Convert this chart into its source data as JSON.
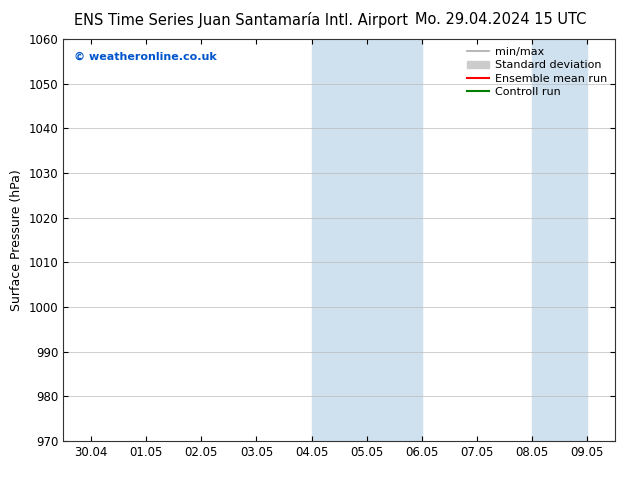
{
  "title_left": "ENS Time Series Juan Santamaría Intl. Airport",
  "title_right": "Mo. 29.04.2024 15 UTC",
  "ylabel": "Surface Pressure (hPa)",
  "ylim": [
    970,
    1060
  ],
  "yticks": [
    970,
    980,
    990,
    1000,
    1010,
    1020,
    1030,
    1040,
    1050,
    1060
  ],
  "xtick_labels": [
    "30.04",
    "01.05",
    "02.05",
    "03.05",
    "04.05",
    "05.05",
    "06.05",
    "07.05",
    "08.05",
    "09.05"
  ],
  "shaded_regions": [
    {
      "xstart": 4,
      "xend": 6,
      "color": "#cfe0ee"
    },
    {
      "xstart": 8,
      "xend": 9,
      "color": "#cfe0ee"
    }
  ],
  "watermark": "© weatheronline.co.uk",
  "watermark_color": "#0055cc",
  "legend_entries": [
    {
      "label": "min/max",
      "color": "#aaaaaa",
      "lw": 1.2
    },
    {
      "label": "Standard deviation",
      "color": "#cccccc",
      "lw": 7
    },
    {
      "label": "Ensemble mean run",
      "color": "#ff0000",
      "lw": 1.5
    },
    {
      "label": "Controll run",
      "color": "#008000",
      "lw": 1.5
    }
  ],
  "bg_color": "#ffffff",
  "grid_color": "#bbbbbb",
  "title_fontsize": 10.5,
  "tick_fontsize": 8.5,
  "legend_fontsize": 8,
  "ylabel_fontsize": 9
}
